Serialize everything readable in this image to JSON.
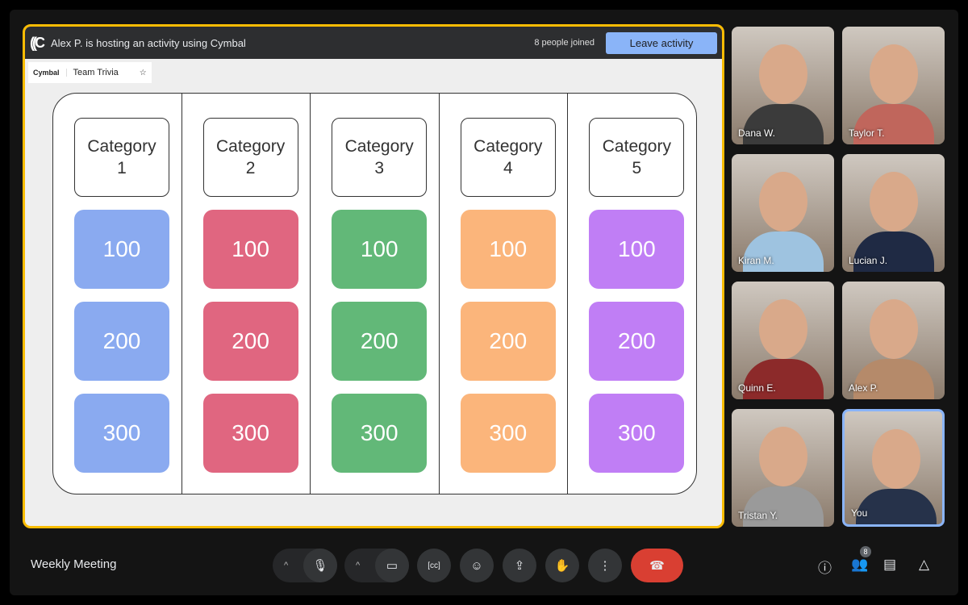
{
  "activity": {
    "host_text": "Alex P. is hosting an activity using Cymbal",
    "joined": "8 people joined",
    "leave_label": "Leave activity",
    "app_brand": "Cymbal",
    "app_name": "Team Trivia"
  },
  "board": {
    "columns": [
      {
        "category": "Category\n1",
        "color": "#8aaaf0",
        "values": [
          "100",
          "200",
          "300"
        ]
      },
      {
        "category": "Category\n2",
        "color": "#e06680",
        "values": [
          "100",
          "200",
          "300"
        ]
      },
      {
        "category": "Category\n3",
        "color": "#62b878",
        "values": [
          "100",
          "200",
          "300"
        ]
      },
      {
        "category": "Category\n4",
        "color": "#fbb57b",
        "values": [
          "100",
          "200",
          "300"
        ]
      },
      {
        "category": "Category\n5",
        "color": "#c07ef5",
        "values": [
          "100",
          "200",
          "300"
        ]
      }
    ]
  },
  "participants": [
    "Dana W.",
    "Taylor T.",
    "Kiran M.",
    "Lucian J.",
    "Quinn E.",
    "Alex P.",
    "Tristan Y.",
    "You"
  ],
  "meeting": {
    "title": "Weekly Meeting",
    "people_count": "8"
  },
  "colors": {
    "accent": "#fbbc04",
    "end_call": "#d93f32",
    "leave": "#8ab4f8"
  }
}
